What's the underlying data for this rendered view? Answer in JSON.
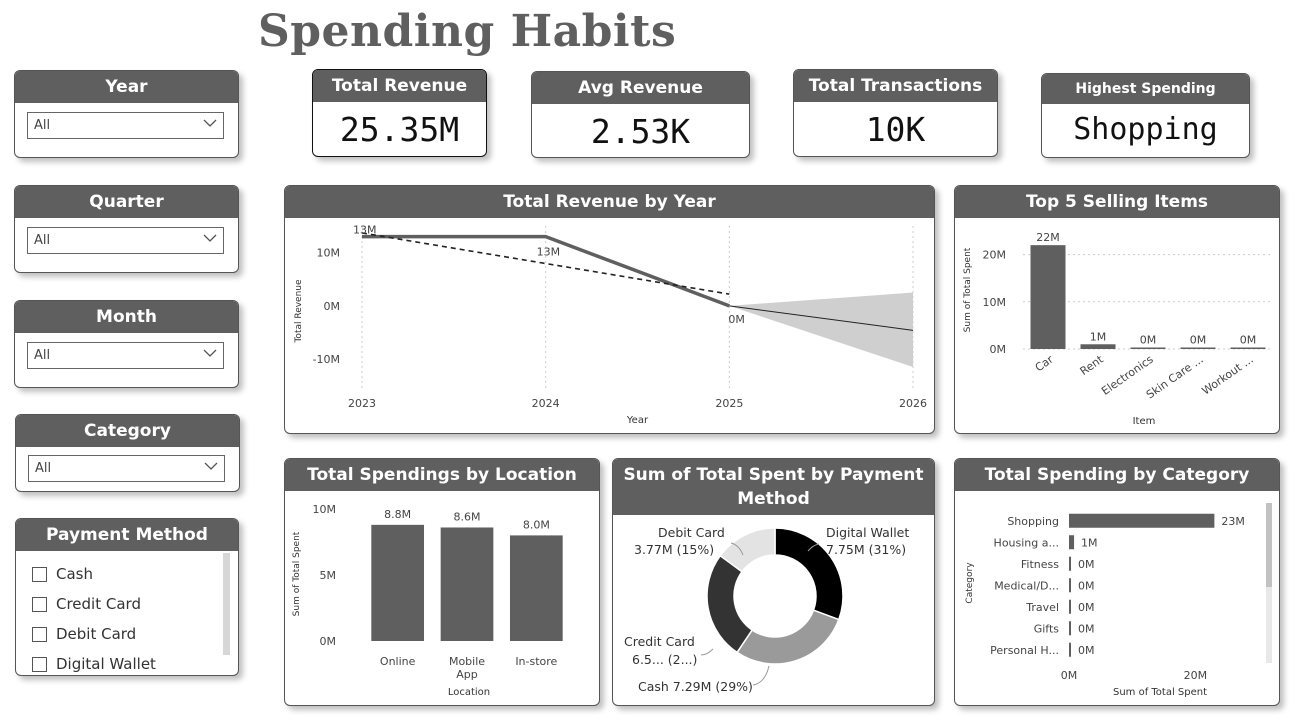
{
  "page": {
    "title": "Spending Habits"
  },
  "slicers": [
    {
      "id": "year",
      "label": "Year",
      "value": "All"
    },
    {
      "id": "quarter",
      "label": "Quarter",
      "value": "All"
    },
    {
      "id": "month",
      "label": "Month",
      "value": "All"
    },
    {
      "id": "category",
      "label": "Category",
      "value": "All"
    }
  ],
  "payment_slicer": {
    "label": "Payment Method",
    "options": [
      "Cash",
      "Credit Card",
      "Debit Card",
      "Digital Wallet"
    ]
  },
  "kpis": [
    {
      "label": "Total Revenue",
      "value": "25.35M"
    },
    {
      "label": "Avg Revenue",
      "value": "2.53K"
    },
    {
      "label": "Total Transactions",
      "value": "10K"
    },
    {
      "label": "Highest Spending Category",
      "value": "Shopping"
    }
  ],
  "chart_data": [
    {
      "id": "revenue_by_year",
      "type": "line",
      "title": "Total Revenue by Year",
      "xlabel": "Year",
      "ylabel": "Total Revenue",
      "x": [
        2023,
        2024,
        2025
      ],
      "values": [
        13,
        13,
        0
      ],
      "data_labels": [
        "13M",
        "13M",
        "0M"
      ],
      "trendline": {
        "x": [
          2023,
          2025
        ],
        "y": [
          13.7,
          2.2
        ]
      },
      "forecast": {
        "x": [
          2025,
          2026
        ],
        "y": [
          0,
          -4.6
        ],
        "upper": [
          0,
          2.5
        ],
        "lower": [
          0,
          -11.5
        ]
      },
      "x_ticks": [
        "2023",
        "2024",
        "2025",
        "2026"
      ],
      "y_ticks": [
        {
          "v": 10,
          "label": "10M"
        },
        {
          "v": 0,
          "label": "0M"
        },
        {
          "v": -10,
          "label": "-10M"
        }
      ],
      "ylim": [
        -16,
        15
      ],
      "grid": true
    },
    {
      "id": "top5_items",
      "type": "bar",
      "title": "Top 5 Selling Items",
      "xlabel": "Item",
      "ylabel": "Sum of Total Spent",
      "categories": [
        "Car",
        "Rent",
        "Electronics",
        "Skin Care ...",
        "Workout ..."
      ],
      "values": [
        22,
        1,
        0.3,
        0.15,
        0.1
      ],
      "data_labels": [
        "22M",
        "1M",
        "0M",
        "0M",
        "0M"
      ],
      "y_ticks": [
        {
          "v": 20,
          "label": "20M"
        },
        {
          "v": 10,
          "label": "10M"
        },
        {
          "v": 0,
          "label": "0M"
        }
      ],
      "ylim": [
        0,
        25
      ],
      "grid": true
    },
    {
      "id": "spend_by_location",
      "type": "bar",
      "title": "Total Spendings by Location",
      "xlabel": "Location",
      "ylabel": "Sum of Total Spent",
      "categories": [
        "Online",
        "Mobile App",
        "In-store"
      ],
      "values": [
        8.8,
        8.6,
        8.0
      ],
      "data_labels": [
        "8.8M",
        "8.6M",
        "8.0M"
      ],
      "y_ticks": [
        {
          "v": 10,
          "label": "10M"
        },
        {
          "v": 5,
          "label": "5M"
        },
        {
          "v": 0,
          "label": "0M"
        }
      ],
      "ylim": [
        0,
        10
      ]
    },
    {
      "id": "spend_by_payment",
      "type": "pie",
      "title": "Sum of Total Spent by Payment Method",
      "slices": [
        {
          "name": "Digital Wallet",
          "value": 7.75,
          "pct": 31,
          "label1": "Digital Wallet",
          "label2": "7.75M (31%)",
          "color": "#000000"
        },
        {
          "name": "Cash",
          "value": 7.29,
          "pct": 29,
          "label1": "Cash 7.29M (29%)",
          "label2": "",
          "color": "#9a9a9a"
        },
        {
          "name": "Credit Card",
          "value": 6.5,
          "pct": 26,
          "label1": "Credit Card",
          "label2": "6.5... (2...)",
          "color": "#333333"
        },
        {
          "name": "Debit Card",
          "value": 3.77,
          "pct": 15,
          "label1": "Debit Card",
          "label2": "3.77M (15%)",
          "color": "#e3e3e3"
        }
      ]
    },
    {
      "id": "spend_by_category",
      "type": "bar",
      "orientation": "horizontal",
      "title": "Total Spending by Category",
      "xlabel": "Sum of Total Spent",
      "ylabel": "Category",
      "categories": [
        "Shopping",
        "Housing a...",
        "Fitness",
        "Medical/D...",
        "Travel",
        "Gifts",
        "Personal H..."
      ],
      "values": [
        23,
        0.8,
        0.1,
        0.1,
        0.1,
        0.1,
        0.1
      ],
      "data_labels": [
        "23M",
        "1M",
        "0M",
        "0M",
        "0M",
        "0M",
        "0M"
      ],
      "x_ticks": [
        {
          "v": 0,
          "label": "0M"
        },
        {
          "v": 20,
          "label": "20M"
        }
      ],
      "xlim": [
        0,
        28
      ]
    }
  ]
}
